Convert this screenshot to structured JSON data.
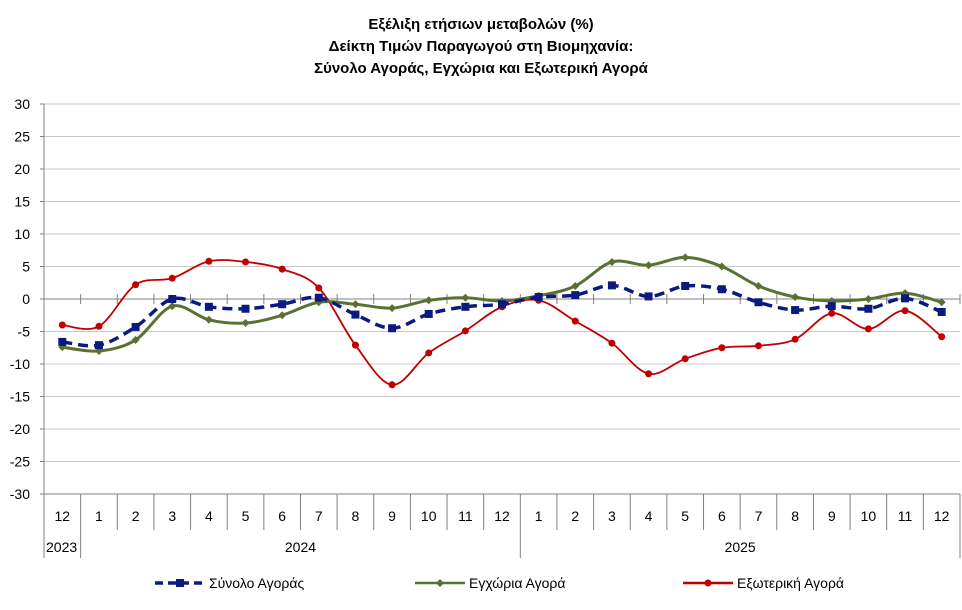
{
  "chart_data": {
    "type": "line",
    "title": [
      "Εξέλιξη ετήσιων μεταβολών (%)",
      "Δείκτη Τιμών Παραγωγού στη Βιομηχανία:",
      "Σύνολο Αγοράς, Εγχώρια και Εξωτερική Αγορά"
    ],
    "categories": [
      "12",
      "1",
      "2",
      "3",
      "4",
      "5",
      "6",
      "7",
      "8",
      "9",
      "10",
      "11",
      "12",
      "1",
      "2",
      "3",
      "4",
      "5",
      "6",
      "7",
      "8",
      "9",
      "10",
      "11",
      "12"
    ],
    "years": [
      {
        "label": "2023",
        "from": 0,
        "to": 0
      },
      {
        "label": "2024",
        "from": 1,
        "to": 12
      },
      {
        "label": "2025",
        "from": 13,
        "to": 24
      }
    ],
    "ylim": [
      -30,
      30
    ],
    "yticks": [
      30,
      25,
      20,
      15,
      10,
      5,
      0,
      -5,
      -10,
      -15,
      -20,
      -25,
      -30
    ],
    "grid": true,
    "legend": "bottom",
    "series": [
      {
        "name": "Σύνολο Αγοράς",
        "color": "#0A1A7E",
        "style": "dashed",
        "marker": "square",
        "values": [
          -6.6,
          -7.1,
          -4.3,
          0.0,
          -1.2,
          -1.5,
          -0.8,
          0.2,
          -2.4,
          -4.5,
          -2.3,
          -1.2,
          -0.8,
          0.3,
          0.6,
          2.1,
          0.4,
          2.0,
          1.5,
          -0.5,
          -1.7,
          -1.1,
          -1.5,
          0.1,
          -2.0
        ]
      },
      {
        "name": "Εγχώρια Αγορά",
        "color": "#5B7132",
        "style": "solid",
        "marker": "diamond",
        "values": [
          -7.4,
          -8.0,
          -6.3,
          -1.1,
          -3.2,
          -3.7,
          -2.5,
          -0.5,
          -0.8,
          -1.4,
          -0.2,
          0.2,
          -0.3,
          0.5,
          2.0,
          5.7,
          5.2,
          6.4,
          5.0,
          2.0,
          0.3,
          -0.3,
          0.0,
          0.9,
          -0.5
        ]
      },
      {
        "name": "Εξωτερική Αγορά",
        "color": "#C00000",
        "style": "solid",
        "marker": "circle",
        "values": [
          -4.0,
          -4.2,
          2.2,
          3.2,
          5.8,
          5.7,
          4.6,
          1.7,
          -7.1,
          -13.2,
          -8.3,
          -4.9,
          -1.2,
          -0.2,
          -3.4,
          -6.8,
          -11.5,
          -9.2,
          -7.5,
          -7.2,
          -6.2,
          -2.2,
          -4.6,
          -1.8,
          -5.8
        ]
      }
    ]
  }
}
